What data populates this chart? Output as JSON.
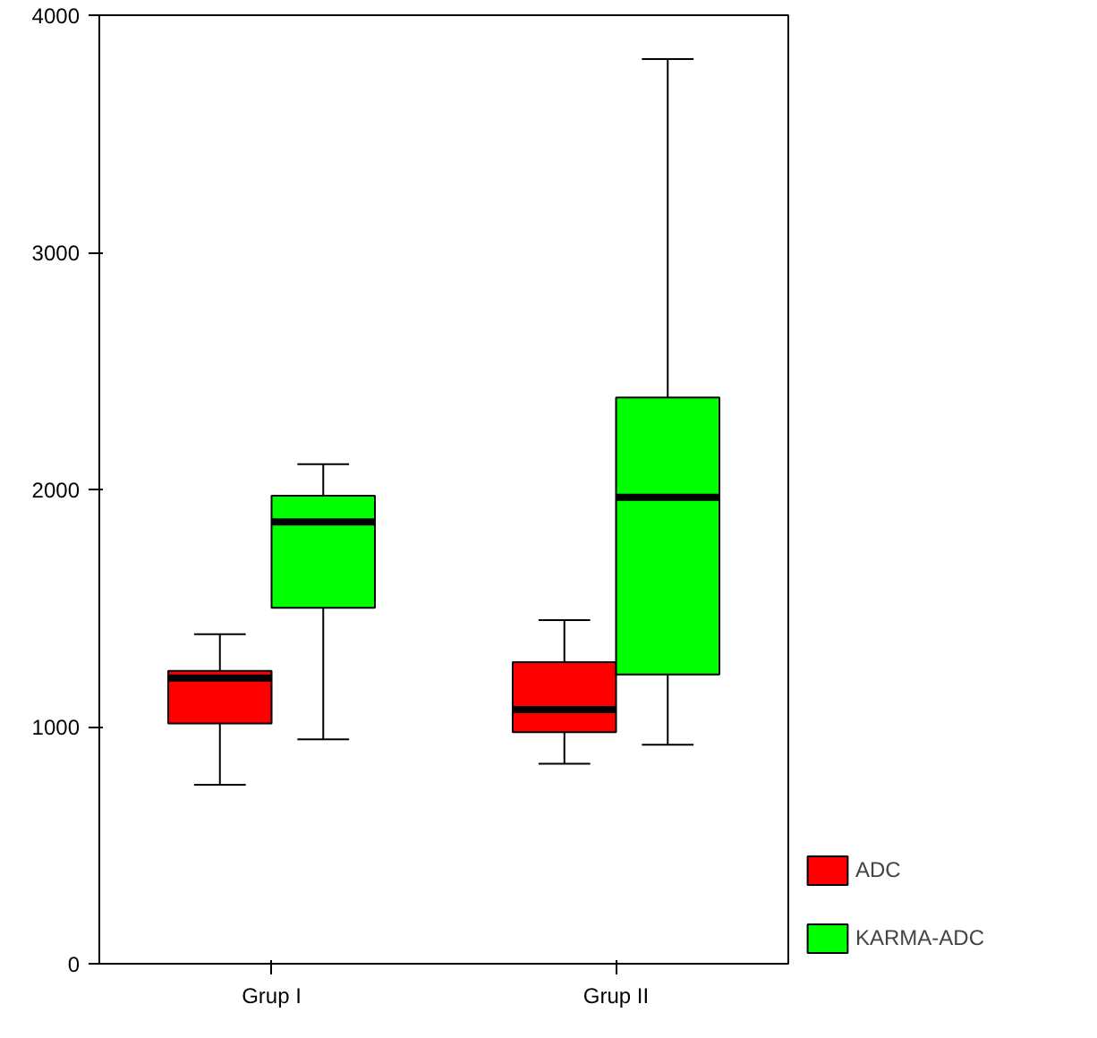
{
  "chart_data": {
    "type": "box",
    "categories": [
      "Grup I",
      "Grup II"
    ],
    "ylim": [
      0,
      4000
    ],
    "yticks": [
      0,
      1000,
      2000,
      3000,
      4000
    ],
    "grid": false,
    "legend": "bottom right",
    "series": [
      {
        "name": "ADC",
        "color": "#ff0000",
        "boxes": [
          {
            "low": 755,
            "q1": 1013,
            "median": 1205,
            "q3": 1235,
            "high": 1390
          },
          {
            "low": 843,
            "q1": 976,
            "median": 1072,
            "q3": 1272,
            "high": 1449
          }
        ]
      },
      {
        "name": "KARMA-ADC",
        "color": "#00ff00",
        "boxes": [
          {
            "low": 946,
            "q1": 1501,
            "median": 1863,
            "q3": 1974,
            "high": 2107
          },
          {
            "low": 924,
            "q1": 1220,
            "median": 1967,
            "q3": 2388,
            "high": 3815
          }
        ]
      }
    ]
  }
}
